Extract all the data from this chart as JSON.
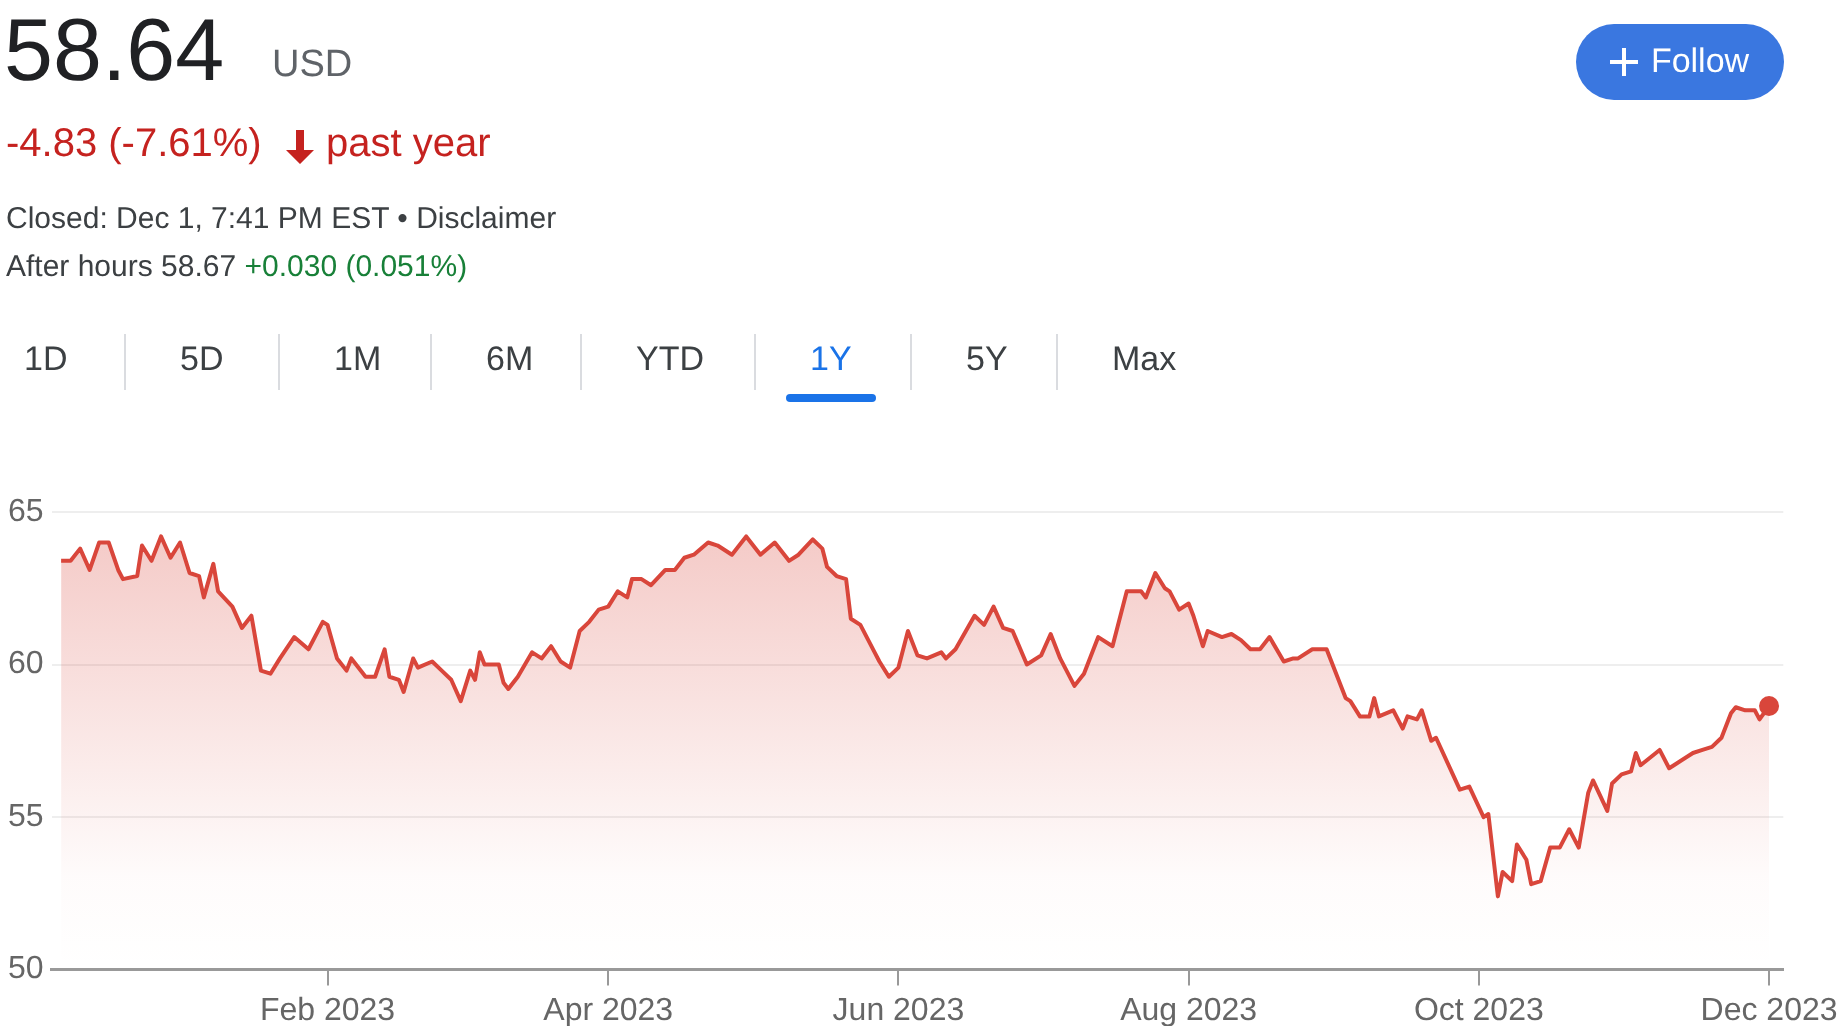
{
  "chart_data": {
    "type": "area",
    "annotations": [
      "58.64",
      "USD",
      "-4.83 (-7.61%)",
      "past year",
      "Closed: Dec 1, 7:41 PM EST • Disclaimer",
      "After hours 58.67",
      "+0.030 (0.051%)",
      "Follow",
      "1D",
      "5D",
      "1M",
      "6M",
      "YTD",
      "1Y",
      "5Y",
      "Max"
    ],
    "x": [
      "2022-12-07",
      "2022-12-09",
      "2022-12-11",
      "2022-12-13",
      "2022-12-15",
      "2022-12-17",
      "2022-12-19",
      "2022-12-20",
      "2022-12-23",
      "2022-12-24",
      "2022-12-26",
      "2022-12-28",
      "2022-12-30",
      "2023-01-01",
      "2023-01-03",
      "2023-01-05",
      "2023-01-06",
      "2023-01-08",
      "2023-01-09",
      "2023-01-12",
      "2023-01-14",
      "2023-01-16",
      "2023-01-18",
      "2023-01-20",
      "2023-01-22",
      "2023-01-25",
      "2023-01-28",
      "2023-01-31",
      "2023-02-01",
      "2023-02-03",
      "2023-02-05",
      "2023-02-06",
      "2023-02-09",
      "2023-02-11",
      "2023-02-13",
      "2023-02-14",
      "2023-02-16",
      "2023-02-17",
      "2023-02-19",
      "2023-02-20",
      "2023-02-23",
      "2023-02-25",
      "2023-02-27",
      "2023-03-01",
      "2023-03-03",
      "2023-03-04",
      "2023-03-05",
      "2023-03-06",
      "2023-03-09",
      "2023-03-10",
      "2023-03-11",
      "2023-03-13",
      "2023-03-16",
      "2023-03-18",
      "2023-03-20",
      "2023-03-22",
      "2023-03-24",
      "2023-03-26",
      "2023-03-28",
      "2023-03-30",
      "2023-04-01",
      "2023-04-03",
      "2023-04-05",
      "2023-04-06",
      "2023-04-08",
      "2023-04-10",
      "2023-04-13",
      "2023-04-15",
      "2023-04-17",
      "2023-04-19",
      "2023-04-22",
      "2023-04-24",
      "2023-04-27",
      "2023-04-30",
      "2023-05-03",
      "2023-05-06",
      "2023-05-09",
      "2023-05-11",
      "2023-05-14",
      "2023-05-16",
      "2023-05-17",
      "2023-05-19",
      "2023-05-21",
      "2023-05-22",
      "2023-05-24",
      "2023-05-27",
      "2023-05-28",
      "2023-05-30",
      "2023-06-01",
      "2023-06-03",
      "2023-06-05",
      "2023-06-07",
      "2023-06-10",
      "2023-06-11",
      "2023-06-13",
      "2023-06-17",
      "2023-06-19",
      "2023-06-21",
      "2023-06-23",
      "2023-06-25",
      "2023-06-28",
      "2023-07-01",
      "2023-07-03",
      "2023-07-05",
      "2023-07-08",
      "2023-07-10",
      "2023-07-13",
      "2023-07-16",
      "2023-07-19",
      "2023-07-22",
      "2023-07-23",
      "2023-07-25",
      "2023-07-27",
      "2023-07-28",
      "2023-07-30",
      "2023-08-01",
      "2023-08-02",
      "2023-08-04",
      "2023-08-05",
      "2023-08-08",
      "2023-08-10",
      "2023-08-12",
      "2023-08-14",
      "2023-08-16",
      "2023-08-18",
      "2023-08-21",
      "2023-08-23",
      "2023-08-24",
      "2023-08-27",
      "2023-08-30",
      "2023-09-03",
      "2023-09-04",
      "2023-09-06",
      "2023-09-08",
      "2023-09-09",
      "2023-09-10",
      "2023-09-13",
      "2023-09-15",
      "2023-09-16",
      "2023-09-18",
      "2023-09-19",
      "2023-09-21",
      "2023-09-22",
      "2023-09-27",
      "2023-09-29",
      "2023-10-02",
      "2023-10-03",
      "2023-10-05",
      "2023-10-06",
      "2023-10-08",
      "2023-10-09",
      "2023-10-11",
      "2023-10-12",
      "2023-10-14",
      "2023-10-16",
      "2023-10-18",
      "2023-10-20",
      "2023-10-22",
      "2023-10-24",
      "2023-10-25",
      "2023-10-28",
      "2023-10-29",
      "2023-10-31",
      "2023-11-02",
      "2023-11-03",
      "2023-11-04",
      "2023-11-08",
      "2023-11-10",
      "2023-11-11",
      "2023-11-15",
      "2023-11-17",
      "2023-11-19",
      "2023-11-21",
      "2023-11-23",
      "2023-11-24",
      "2023-11-26",
      "2023-11-28",
      "2023-11-29",
      "2023-12-01"
    ],
    "series": [
      {
        "color": "#d9463b",
        "values": [
          63.4,
          63.4,
          63.8,
          63.1,
          64.0,
          64.0,
          63.1,
          62.8,
          62.9,
          63.9,
          63.4,
          64.2,
          63.5,
          64.0,
          63.0,
          62.9,
          62.2,
          63.3,
          62.4,
          61.9,
          61.2,
          61.6,
          59.8,
          59.7,
          60.2,
          60.9,
          60.5,
          61.4,
          61.3,
          60.2,
          59.8,
          60.2,
          59.6,
          59.6,
          60.5,
          59.6,
          59.5,
          59.1,
          60.2,
          59.9,
          60.1,
          59.8,
          59.5,
          58.8,
          59.8,
          59.5,
          60.4,
          60.0,
          60.0,
          59.4,
          59.2,
          59.6,
          60.4,
          60.2,
          60.6,
          60.1,
          59.9,
          61.1,
          61.4,
          61.8,
          61.9,
          62.4,
          62.2,
          62.8,
          62.8,
          62.6,
          63.1,
          63.1,
          63.5,
          63.6,
          64.0,
          63.9,
          63.6,
          64.2,
          63.6,
          64.0,
          63.4,
          63.6,
          64.1,
          63.8,
          63.2,
          62.9,
          62.8,
          61.5,
          61.3,
          60.4,
          60.1,
          59.6,
          59.9,
          61.1,
          60.3,
          60.2,
          60.4,
          60.2,
          60.5,
          61.6,
          61.3,
          61.9,
          61.2,
          61.1,
          60.0,
          60.3,
          61.0,
          60.2,
          59.3,
          59.7,
          60.9,
          60.6,
          62.4,
          62.4,
          62.2,
          63.0,
          62.5,
          62.4,
          61.8,
          62.0,
          61.6,
          60.6,
          61.1,
          60.9,
          61.0,
          60.8,
          60.5,
          60.5,
          60.9,
          60.1,
          60.2,
          60.2,
          60.5,
          60.5,
          58.9,
          58.8,
          58.3,
          58.3,
          58.9,
          58.3,
          58.5,
          57.9,
          58.3,
          58.2,
          58.5,
          57.5,
          57.6,
          55.9,
          56.0,
          55.0,
          55.1,
          52.4,
          53.2,
          52.9,
          54.1,
          53.6,
          52.8,
          52.9,
          54.0,
          54.0,
          54.6,
          54.0,
          55.8,
          56.2,
          55.2,
          56.1,
          56.4,
          56.5,
          57.1,
          56.7,
          57.2,
          56.6,
          56.7,
          57.1,
          57.2,
          57.3,
          57.6,
          58.4,
          58.6,
          58.5,
          58.5,
          58.2,
          58.64
        ]
      }
    ],
    "xlim": [
      "2022-12-05",
      "2023-12-04"
    ],
    "xticks": [
      {
        "value": "2023-02-01",
        "label": "Feb 2023"
      },
      {
        "value": "2023-04-01",
        "label": "Apr 2023"
      },
      {
        "value": "2023-06-01",
        "label": "Jun 2023"
      },
      {
        "value": "2023-08-01",
        "label": "Aug 2023"
      },
      {
        "value": "2023-10-01",
        "label": "Oct 2023"
      },
      {
        "value": "2023-12-01",
        "label": "Dec 2023"
      }
    ],
    "ylim": [
      50,
      65
    ],
    "yticks": [
      50,
      55,
      60,
      65
    ],
    "grid": "y"
  }
}
